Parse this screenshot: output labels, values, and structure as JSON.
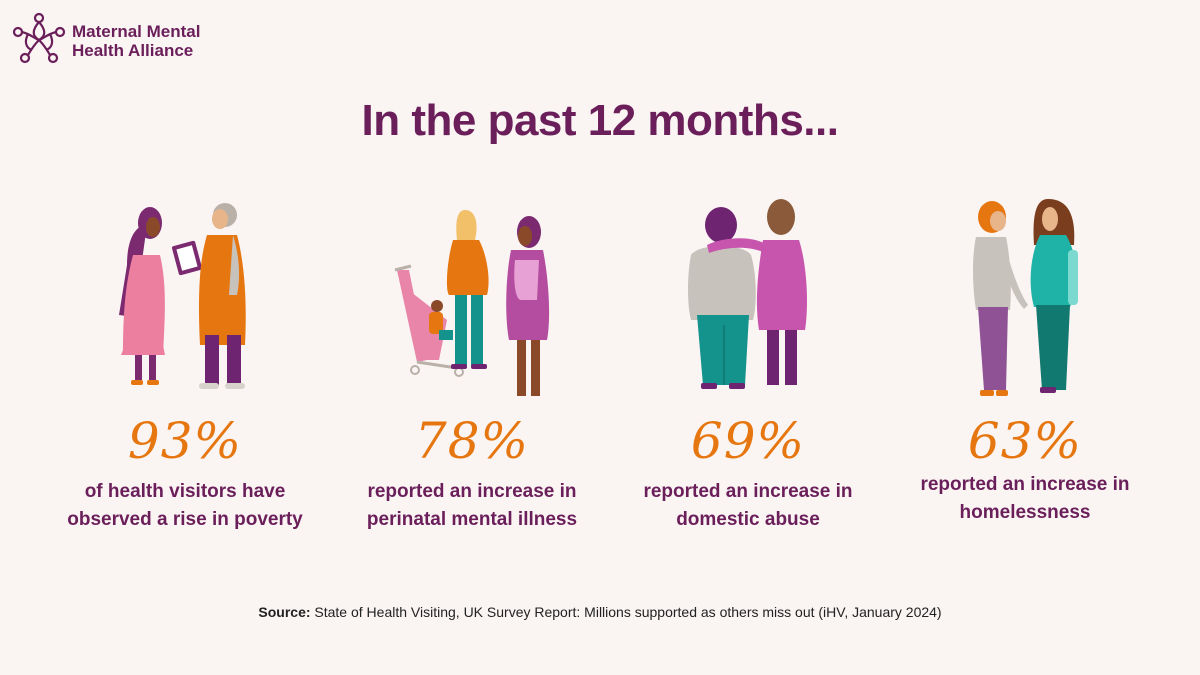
{
  "brand": {
    "name_line1": "Maternal Mental",
    "name_line2": "Health Alliance",
    "logo_icon": "alliance-flower-icon"
  },
  "headline": "In the past 12 months...",
  "stats": [
    {
      "percent": "93%",
      "value": 93,
      "line1": "of health visitors have",
      "line2": "observed a rise in poverty",
      "illustration": "health-visitor-and-mother-illustration"
    },
    {
      "percent": "78%",
      "value": 78,
      "line1": "reported an increase in",
      "line2": "perinatal mental illness",
      "illustration": "mother-with-pushchair-illustration"
    },
    {
      "percent": "69%",
      "value": 69,
      "line1": "reported an increase in",
      "line2": "domestic abuse",
      "illustration": "women-embracing-illustration"
    },
    {
      "percent": "63%",
      "value": 63,
      "line1": "reported an increase in",
      "line2": "homelessness",
      "illustration": "pregnant-woman-and-friend-illustration"
    }
  ],
  "source": {
    "label": "Source:",
    "text": "State of Health Visiting, UK Survey Report: Millions supported as others miss out (iHV, January 2024)"
  },
  "colors": {
    "background": "#faf4f3",
    "purple": "#6b1f5a",
    "orange": "#e6760f",
    "pink": "#e97da0",
    "magenta": "#b44da0",
    "teal": "#14938c"
  }
}
